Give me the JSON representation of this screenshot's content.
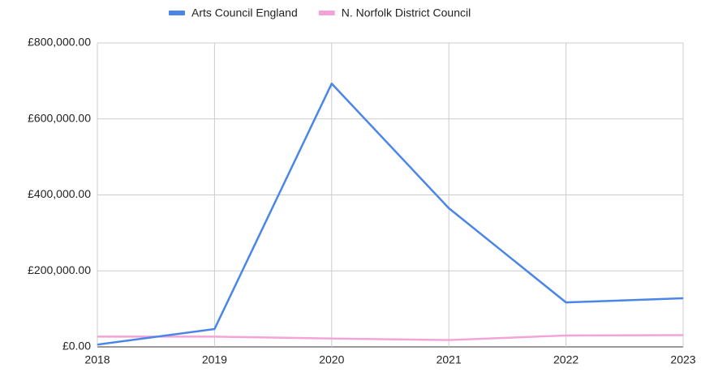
{
  "chart_data": {
    "type": "line",
    "x": [
      2018,
      2019,
      2020,
      2021,
      2022,
      2023
    ],
    "series": [
      {
        "name": "Arts Council England",
        "color": "#4a86e8",
        "values": [
          6000,
          47000,
          693000,
          365000,
          117000,
          128000
        ]
      },
      {
        "name": "N. Norfolk District Council",
        "color": "#f4a3d7",
        "values": [
          27000,
          27000,
          22000,
          18000,
          30000,
          31000
        ]
      }
    ],
    "xlim": [
      2018,
      2023
    ],
    "xticks": [
      2018,
      2019,
      2020,
      2021,
      2022,
      2023
    ],
    "ylim": [
      0,
      800000
    ],
    "yticks": [
      {
        "value": 0,
        "label": "£0.00"
      },
      {
        "value": 200000,
        "label": "£200,000.00"
      },
      {
        "value": 400000,
        "label": "£400,000.00"
      },
      {
        "value": 600000,
        "label": "£600,000.00"
      },
      {
        "value": 800000,
        "label": "£800,000.00"
      }
    ],
    "grid": true,
    "legend": "top"
  }
}
